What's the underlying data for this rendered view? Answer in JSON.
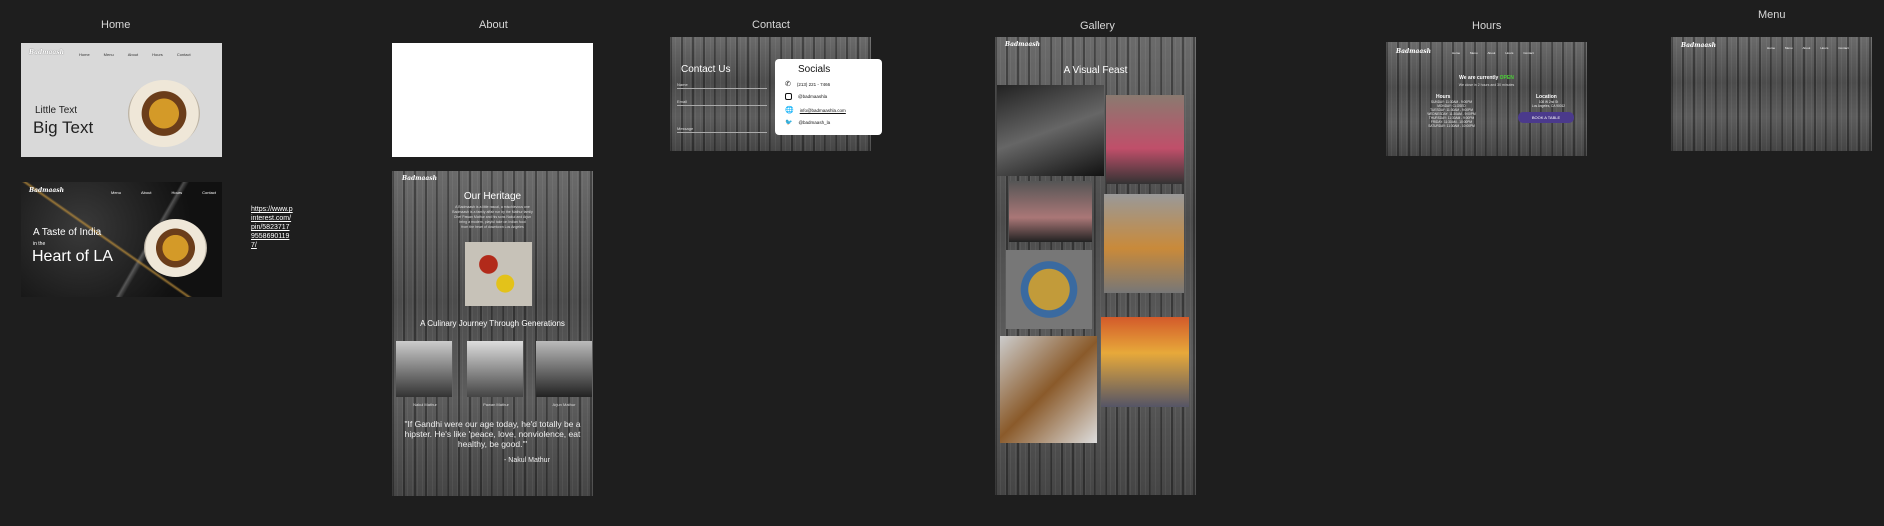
{
  "labels": {
    "home": "Home",
    "about": "About",
    "contact": "Contact",
    "gallery": "Gallery",
    "hours": "Hours",
    "menu": "Menu"
  },
  "brand": "Badmaash",
  "home_a": {
    "nav": [
      "Home",
      "Menu",
      "About",
      "Hours",
      "Contact"
    ],
    "little": "Little Text",
    "big": "Big Text"
  },
  "home_b": {
    "nav": [
      "Menu",
      "About",
      "Hours",
      "Contact"
    ],
    "line1": "A Taste of India",
    "line2": "in the",
    "line3": "Heart of LA"
  },
  "link_text": "https://www.pinterest.com/pin/582371795586901197/",
  "about": {
    "heritage_title": "Our Heritage",
    "heritage_lines": [
      "A Badmaash is a little rascal, a mischievous one",
      "Badmaash is a family affair run by the Mathur family",
      "Chef Pawan Mathur and his sons Nakul and Arjun",
      "bring a modern, playful take on Indian food",
      "from the heart of downtown Los Angeles"
    ],
    "journey": "A Culinary Journey Through Generations",
    "people": [
      "Nakul Mathur",
      "Pawan Mathur",
      "Arjun Mathur"
    ],
    "quote": "\"If Gandhi were our age today, he'd totally be a hipster. He's like 'peace, love, nonviolence, eat healthy, be good.'\"",
    "quote_author": "- Nakul Mathur"
  },
  "contact": {
    "title": "Contact Us",
    "fields": [
      "Name",
      "Email",
      "Message"
    ],
    "socials_title": "Socials",
    "socials": [
      {
        "icon": "phone-icon",
        "text": "(213) 221 - 7466"
      },
      {
        "icon": "instagram-icon",
        "text": "@badmaashla"
      },
      {
        "icon": "globe-icon",
        "text": "info@badmaashla.com"
      },
      {
        "icon": "twitter-icon",
        "text": "@badmaash_la"
      }
    ]
  },
  "gallery": {
    "title": "A Visual Feast"
  },
  "hours": {
    "nav": [
      "Home",
      "Menu",
      "About",
      "Hours",
      "Contact"
    ],
    "currently_prefix": "We are currently",
    "currently_status": "OPEN",
    "currently_sub": "We close in 2 hours and 30 minutes",
    "hours_title": "Hours",
    "hours_lines": [
      "SUNDAY: 11:30AM - 9:00PM",
      "MONDAY: CLOSED",
      "TUESDAY: 11:30AM - 9:00PM",
      "WEDNESDAY: 11:30AM - 9:00PM",
      "THURSDAY: 11:30AM - 9:00PM",
      "FRIDAY: 11:30AM - 10:00PM",
      "SATURDAY: 11:30AM - 10:00PM"
    ],
    "location_title": "Location",
    "location_lines": [
      "108 W 2nd St",
      "Los Angeles, CA 90012"
    ],
    "book_label": "BOOK A TABLE"
  },
  "menu": {
    "nav": [
      "Home",
      "Menu",
      "About",
      "Hours",
      "Contact"
    ]
  },
  "colors": {
    "background": "#1e1e1e",
    "open_green": "#4cd137",
    "book_button": "#4b3a8c"
  }
}
